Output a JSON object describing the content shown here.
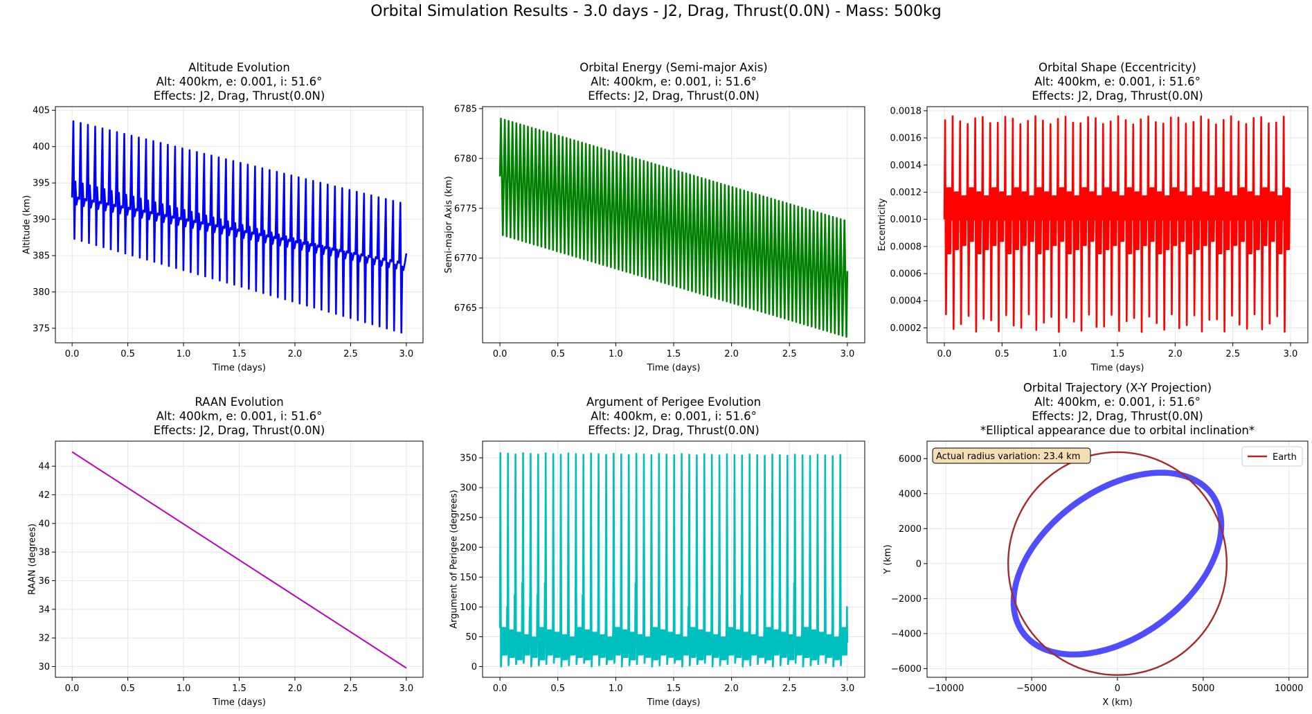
{
  "figure_title": "Orbital Simulation Results - 3.0 days - J2, Drag, Thrust(0.0N) - Mass: 500kg",
  "chart_data": [
    {
      "type": "line",
      "title": [
        "Altitude Evolution",
        "Alt: 400km, e: 0.001, i: 51.6°",
        "Effects: J2, Drag, Thrust(0.0N)"
      ],
      "xlabel": "Time (days)",
      "ylabel": "Altitude (km)",
      "xlim": [
        -0.15,
        3.15
      ],
      "ylim": [
        373,
        405.5
      ],
      "xticks": [
        0.0,
        0.5,
        1.0,
        1.5,
        2.0,
        2.5,
        3.0
      ],
      "xtick_labels": [
        "0.0",
        "0.5",
        "1.0",
        "1.5",
        "2.0",
        "2.5",
        "3.0"
      ],
      "yticks": [
        375,
        380,
        385,
        390,
        395,
        400,
        405
      ],
      "ytick_labels": [
        "375",
        "380",
        "385",
        "390",
        "395",
        "400",
        "405"
      ],
      "grid": true,
      "series": [
        {
          "color": "#0000ff",
          "cycles": 46,
          "x_start": 0.0,
          "x_end": 3.0,
          "peak": [
            403.5,
            392.3
          ],
          "high": [
            395.2,
            383.5
          ],
          "mid": [
            393.0,
            384.0
          ],
          "low": [
            387.3,
            374.4
          ],
          "final": 385.3
        }
      ]
    },
    {
      "type": "line",
      "title": [
        "Orbital Energy (Semi-major Axis)",
        "Alt: 400km, e: 0.001, i: 51.6°",
        "Effects: J2, Drag, Thrust(0.0N)"
      ],
      "xlabel": "Time (days)",
      "ylabel": "Semi-major Axis (km)",
      "xlim": [
        -0.15,
        3.15
      ],
      "ylim": [
        6761.5,
        6785.2
      ],
      "xticks": [
        0.0,
        0.5,
        1.0,
        1.5,
        2.0,
        2.5,
        3.0
      ],
      "xtick_labels": [
        "0.0",
        "0.5",
        "1.0",
        "1.5",
        "2.0",
        "2.5",
        "3.0"
      ],
      "yticks": [
        6765,
        6770,
        6775,
        6780,
        6785
      ],
      "ytick_labels": [
        "6765",
        "6770",
        "6775",
        "6780",
        "6785"
      ],
      "grid": true,
      "series": [
        {
          "color": "#008000",
          "cycles": 90,
          "x_start": 0.0,
          "x_end": 3.0,
          "peak": [
            6784.0,
            6773.8
          ],
          "low": [
            6772.3,
            6762.1
          ],
          "start_value": 6778.2,
          "final": 6768.7
        }
      ]
    },
    {
      "type": "line",
      "title": [
        "Orbital Shape (Eccentricity)",
        "Alt: 400km, e: 0.001, i: 51.6°",
        "Effects: J2, Drag, Thrust(0.0N)"
      ],
      "xlabel": "Time (days)",
      "ylabel": "Eccentricity",
      "xlim": [
        -0.15,
        3.15
      ],
      "ylim": [
        9e-05,
        0.00183
      ],
      "xticks": [
        0.0,
        0.5,
        1.0,
        1.5,
        2.0,
        2.5,
        3.0
      ],
      "xtick_labels": [
        "0.0",
        "0.5",
        "1.0",
        "1.5",
        "2.0",
        "2.5",
        "3.0"
      ],
      "yticks": [
        0.0002,
        0.0004,
        0.0006,
        0.0008,
        0.001,
        0.0012,
        0.0014,
        0.0016,
        0.0018
      ],
      "ytick_labels": [
        "0.0002",
        "0.0004",
        "0.0006",
        "0.0008",
        "0.0010",
        "0.0012",
        "0.0014",
        "0.0016",
        "0.0018"
      ],
      "grid": true,
      "series": [
        {
          "color": "#ff0000",
          "cycles": 46,
          "x_start": 0.0,
          "x_end": 3.0,
          "peak": [
            0.0017,
            0.00176
          ],
          "low": [
            0.00017,
            0.0003
          ],
          "band": [
            0.00075,
            0.00123
          ],
          "start_value": 0.001
        }
      ]
    },
    {
      "type": "line",
      "title": [
        "RAAN Evolution",
        "Alt: 400km, e: 0.001, i: 51.6°",
        "Effects: J2, Drag, Thrust(0.0N)"
      ],
      "xlabel": "Time (days)",
      "ylabel": "RAAN (degrees)",
      "xlim": [
        -0.15,
        3.15
      ],
      "ylim": [
        29.25,
        45.75
      ],
      "xticks": [
        0.0,
        0.5,
        1.0,
        1.5,
        2.0,
        2.5,
        3.0
      ],
      "xtick_labels": [
        "0.0",
        "0.5",
        "1.0",
        "1.5",
        "2.0",
        "2.5",
        "3.0"
      ],
      "yticks": [
        30,
        32,
        34,
        36,
        38,
        40,
        42,
        44
      ],
      "ytick_labels": [
        "30",
        "32",
        "34",
        "36",
        "38",
        "40",
        "42",
        "44"
      ],
      "grid": true,
      "series": [
        {
          "color": "#bf00bf",
          "x": [
            0.0,
            3.0
          ],
          "y": [
            45.0,
            29.9
          ]
        }
      ]
    },
    {
      "type": "line",
      "title": [
        "Argument of Perigee Evolution",
        "Alt: 400km, e: 0.001, i: 51.6°",
        "Effects: J2, Drag, Thrust(0.0N)"
      ],
      "xlabel": "Time (days)",
      "ylabel": "Argument of Perigee (degrees)",
      "xlim": [
        -0.15,
        3.15
      ],
      "ylim": [
        -18,
        378
      ],
      "xticks": [
        0.0,
        0.5,
        1.0,
        1.5,
        2.0,
        2.5,
        3.0
      ],
      "xtick_labels": [
        "0.0",
        "0.5",
        "1.0",
        "1.5",
        "2.0",
        "2.5",
        "3.0"
      ],
      "yticks": [
        0,
        50,
        100,
        150,
        200,
        250,
        300,
        350
      ],
      "ytick_labels": [
        "0",
        "50",
        "100",
        "150",
        "200",
        "250",
        "300",
        "350"
      ],
      "grid": true,
      "series": [
        {
          "color": "#00bfbf",
          "cycles": 46,
          "x_start": 0.0,
          "x_end": 3.0,
          "peak": [
            358,
            355
          ],
          "low": [
            0,
            5
          ],
          "band": [
            20,
            65
          ]
        }
      ]
    },
    {
      "type": "line",
      "title": [
        "Orbital Trajectory (X-Y Projection)",
        "Alt: 400km, e: 0.001, i: 51.6°",
        "Effects: J2, Drag, Thrust(0.0N)",
        "*Elliptical appearance due to orbital inclination*"
      ],
      "xlabel": "X (km)",
      "ylabel": "Y (km)",
      "xlim": [
        -11100,
        11100
      ],
      "ylim": [
        -6500,
        7000
      ],
      "xticks": [
        -10000,
        -5000,
        0,
        5000,
        10000
      ],
      "xtick_labels": [
        "−10000",
        "−5000",
        "0",
        "5000",
        "10000"
      ],
      "yticks": [
        -6000,
        -4000,
        -2000,
        0,
        2000,
        4000,
        6000
      ],
      "ytick_labels": [
        "−6000",
        "−4000",
        "−2000",
        "0",
        "2000",
        "4000",
        "6000"
      ],
      "grid": true,
      "annotation": "Actual radius variation: 23.4 km",
      "legend": {
        "location": "upper right",
        "entries": [
          {
            "label": "Earth",
            "color": "#a52a2a"
          }
        ]
      },
      "series": [
        {
          "kind": "orbit-band",
          "color": "#4444ff",
          "semi_major": 6778,
          "semi_minor": 4210,
          "tilt_deg": 35,
          "band_width": 350
        },
        {
          "kind": "circle",
          "name": "Earth",
          "color": "#a52a2a",
          "radius": 6371
        }
      ]
    }
  ]
}
